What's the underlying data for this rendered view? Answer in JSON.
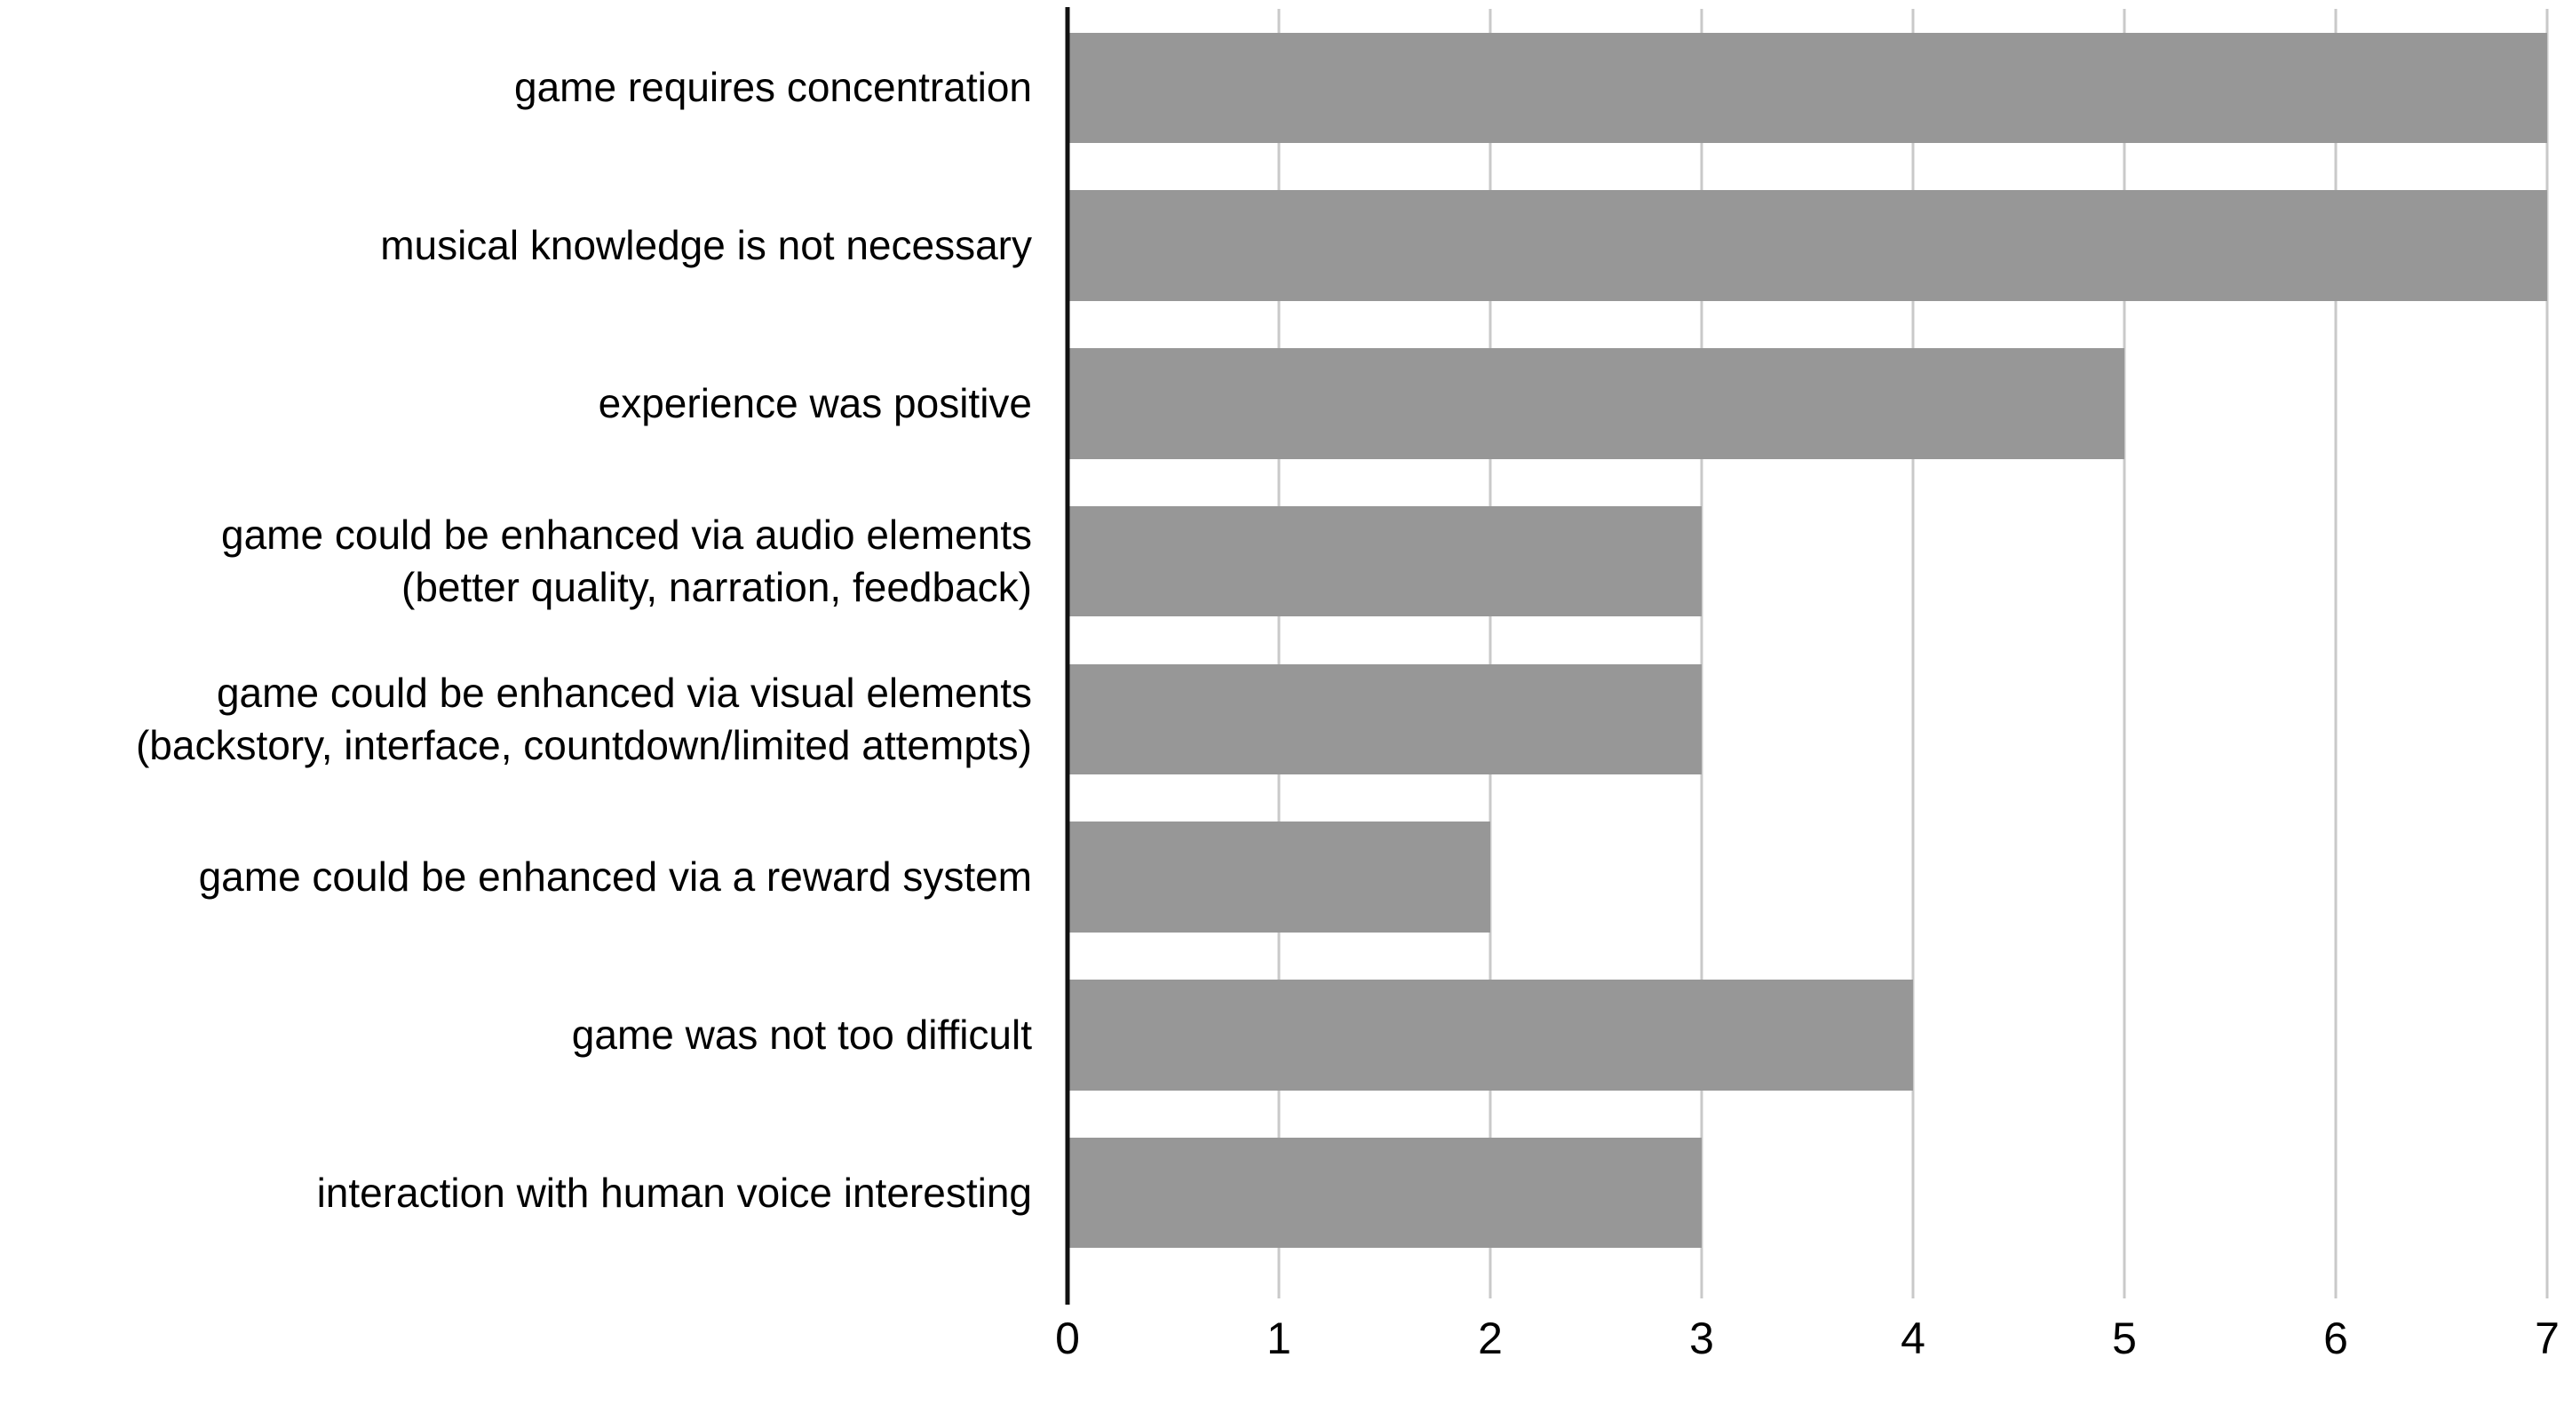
{
  "chart_data": {
    "type": "bar",
    "orientation": "horizontal",
    "title": "",
    "xlabel": "",
    "ylabel": "",
    "categories": [
      "game requires concentration",
      "musical knowledge is not necessary",
      "experience was positive",
      "game could be enhanced via audio elements\n(better quality, narration, feedback)",
      "game could be enhanced via visual elements\n(backstory, interface, countdown/limited attempts)",
      "game could be enhanced via a reward system",
      "game was not too difficult",
      "interaction with human voice interesting"
    ],
    "values": [
      7,
      7,
      5,
      3,
      3,
      2,
      4,
      3
    ],
    "xticks": [
      "0",
      "1",
      "2",
      "3",
      "4",
      "5",
      "6",
      "7"
    ],
    "xlim": [
      0,
      7
    ],
    "grid": "vertical-on",
    "legend": "none",
    "colors": {
      "bar": "#979797",
      "gridline": "#c9c9c9",
      "axis": "#111111",
      "text": "#000000",
      "background": "#ffffff"
    }
  }
}
